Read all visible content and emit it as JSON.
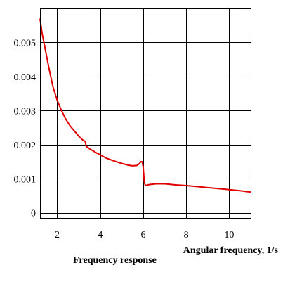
{
  "chart_data": {
    "type": "line",
    "title": "Frequency response",
    "xlabel": "Angular frequency, 1/s",
    "ylabel": "",
    "xlim": [
      1.2,
      11.0
    ],
    "ylim": [
      -0.00015,
      0.006
    ],
    "x_ticks": [
      2,
      4,
      6,
      8,
      10
    ],
    "x_tick_labels": [
      "2",
      "4",
      "6",
      "8",
      "10"
    ],
    "y_ticks": [
      0,
      0.001,
      0.002,
      0.003,
      0.004,
      0.005
    ],
    "y_tick_labels": [
      "0",
      "0.001",
      "0.002",
      "0.003",
      "0.004",
      "0.005"
    ],
    "grid": true,
    "series": [
      {
        "name": "",
        "color": "#e00000",
        "x": [
          1.2,
          1.3,
          1.4,
          1.6,
          1.8,
          2.0,
          2.2,
          2.4,
          2.6,
          2.8,
          3.0,
          3.2,
          3.3,
          3.35,
          3.5,
          3.8,
          4.0,
          4.3,
          4.6,
          5.0,
          5.3,
          5.5,
          5.7,
          5.8,
          5.9,
          5.95,
          6.0,
          6.05,
          6.1,
          6.3,
          6.6,
          7.0,
          7.5,
          8.0,
          8.5,
          9.0,
          9.5,
          10.0,
          10.5,
          11.0
        ],
        "y": [
          0.0057,
          0.00525,
          0.00495,
          0.0043,
          0.0037,
          0.0033,
          0.003,
          0.00275,
          0.00255,
          0.0024,
          0.00225,
          0.00213,
          0.0021,
          0.00195,
          0.00188,
          0.00177,
          0.0017,
          0.0016,
          0.00153,
          0.00145,
          0.0014,
          0.00138,
          0.00139,
          0.00143,
          0.0015,
          0.0015,
          0.00135,
          0.0009,
          0.0008,
          0.00083,
          0.00085,
          0.00085,
          0.00082,
          0.0008,
          0.00077,
          0.00074,
          0.00071,
          0.00068,
          0.00065,
          0.00061
        ]
      }
    ]
  }
}
